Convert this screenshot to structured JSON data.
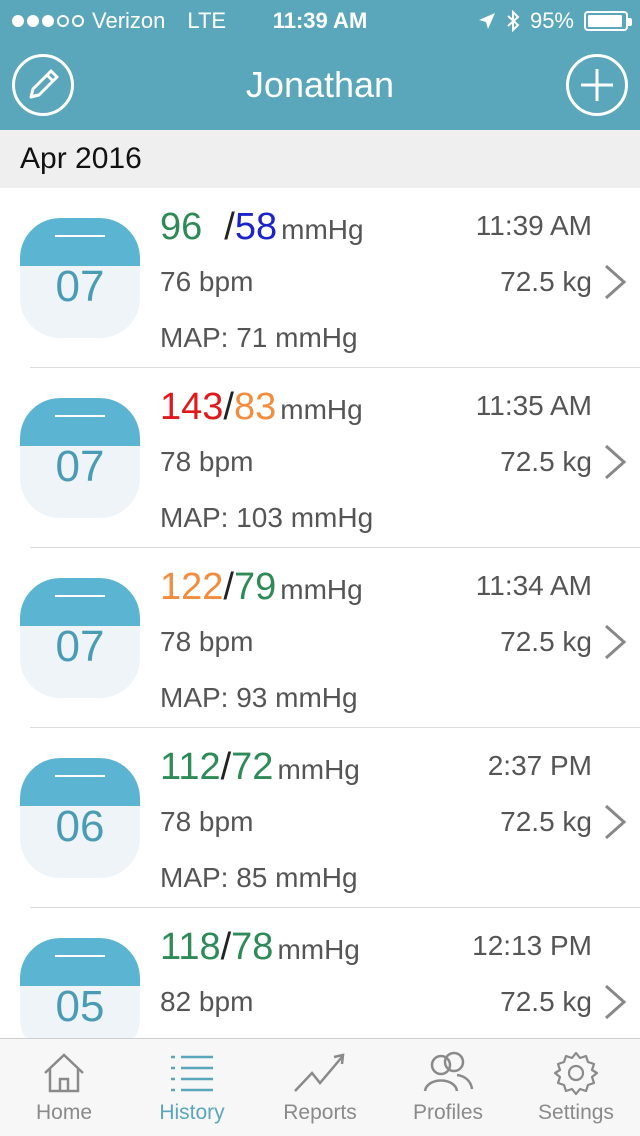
{
  "status": {
    "carrier": "Verizon",
    "network": "LTE",
    "time": "11:39 AM",
    "battery": "95%"
  },
  "nav": {
    "title": "Jonathan",
    "edit_icon": "pencil-icon",
    "add_icon": "plus-icon"
  },
  "section": {
    "title": "Apr 2016"
  },
  "colors": {
    "accent": "#5aa6bb",
    "green": "#2e8b57",
    "blue": "#1a24c8",
    "red": "#e0191c",
    "orange": "#f28c3e"
  },
  "readings": [
    {
      "day": "07",
      "sys": "96",
      "slash": "/",
      "dia": "58",
      "unit": "mmHg",
      "sys_color": "#2e8b57",
      "dia_color": "#1a24c8",
      "time": "11:39 AM",
      "bpm": "76 bpm",
      "weight": "72.5 kg",
      "map": "MAP: 71 mmHg"
    },
    {
      "day": "07",
      "sys": "143",
      "slash": "/",
      "dia": "83",
      "unit": "mmHg",
      "sys_color": "#e0191c",
      "dia_color": "#f28c3e",
      "time": "11:35 AM",
      "bpm": "78 bpm",
      "weight": "72.5 kg",
      "map": "MAP: 103 mmHg"
    },
    {
      "day": "07",
      "sys": "122",
      "slash": "/",
      "dia": "79",
      "unit": "mmHg",
      "sys_color": "#f28c3e",
      "dia_color": "#2e8b57",
      "time": "11:34 AM",
      "bpm": "78 bpm",
      "weight": "72.5 kg",
      "map": "MAP: 93 mmHg"
    },
    {
      "day": "06",
      "sys": "112",
      "slash": "/",
      "dia": "72",
      "unit": "mmHg",
      "sys_color": "#2e8b57",
      "dia_color": "#2e8b57",
      "time": "2:37 PM",
      "bpm": "78 bpm",
      "weight": "72.5 kg",
      "map": "MAP: 85 mmHg"
    },
    {
      "day": "05",
      "sys": "118",
      "slash": "/",
      "dia": "78",
      "unit": "mmHg",
      "sys_color": "#2e8b57",
      "dia_color": "#2e8b57",
      "time": "12:13 PM",
      "bpm": "82 bpm",
      "weight": "72.5 kg",
      "map": ""
    }
  ],
  "tabs": [
    {
      "label": "Home",
      "icon": "home-icon",
      "active": false
    },
    {
      "label": "History",
      "icon": "list-icon",
      "active": true
    },
    {
      "label": "Reports",
      "icon": "trend-chart-icon",
      "active": false
    },
    {
      "label": "Profiles",
      "icon": "users-icon",
      "active": false
    },
    {
      "label": "Settings",
      "icon": "gear-icon",
      "active": false
    }
  ]
}
